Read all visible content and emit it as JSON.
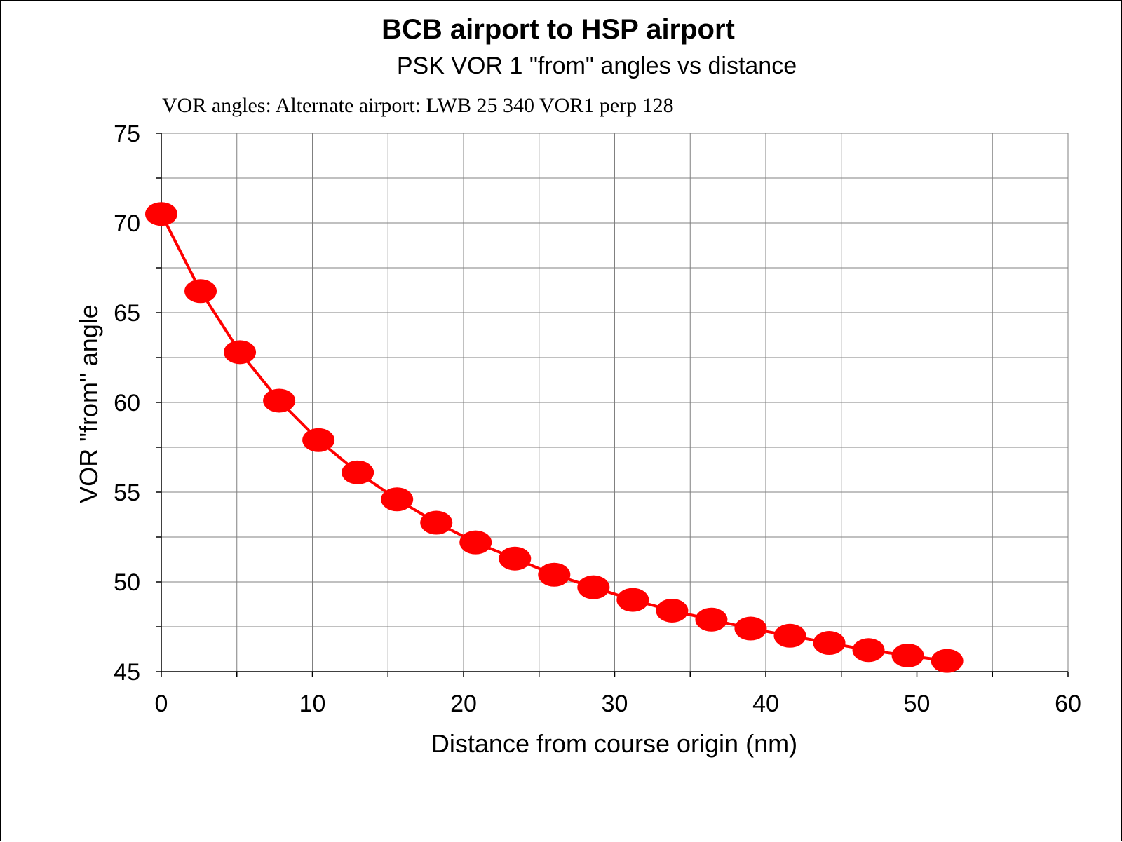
{
  "chart_data": {
    "type": "line",
    "title": "BCB airport  to HSP airport",
    "subtitle": "PSK VOR 1  \"from\" angles vs distance",
    "annotation": "VOR angles: Alternate airport: LWB 25 340   VOR1 perp 128",
    "xlabel": "Distance from course origin (nm)",
    "ylabel": "VOR \"from\" angle",
    "xlim": [
      0,
      60
    ],
    "ylim": [
      45,
      75
    ],
    "x_ticks": [
      0,
      10,
      20,
      30,
      40,
      50,
      60
    ],
    "y_ticks": [
      45,
      50,
      55,
      60,
      65,
      70,
      75
    ],
    "grid": true,
    "series": [
      {
        "color": "#ff0000",
        "marker": "filled-ellipse",
        "x": [
          0,
          2.6,
          5.2,
          7.8,
          10.4,
          13.0,
          15.6,
          18.2,
          20.8,
          23.4,
          26.0,
          28.6,
          31.2,
          33.8,
          36.4,
          39.0,
          41.6,
          44.2,
          46.8,
          49.4,
          52.0
        ],
        "y": [
          70.5,
          66.2,
          62.8,
          60.1,
          57.9,
          56.1,
          54.6,
          53.3,
          52.2,
          51.3,
          50.4,
          49.7,
          49.0,
          48.4,
          47.9,
          47.4,
          47.0,
          46.6,
          46.2,
          45.9,
          45.6
        ]
      }
    ]
  }
}
